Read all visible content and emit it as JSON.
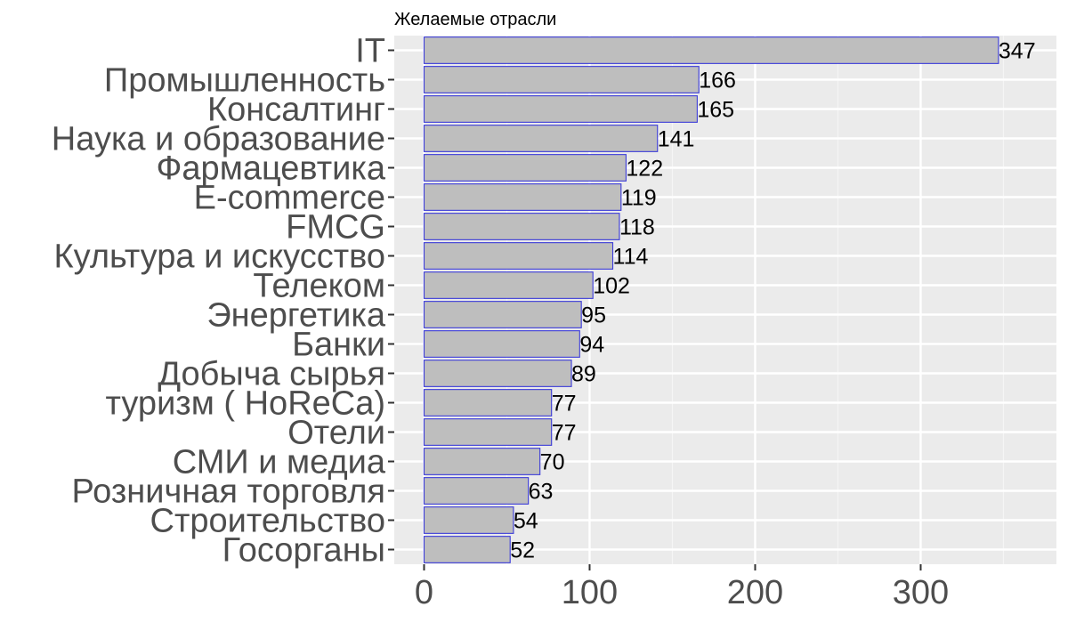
{
  "chart_data": {
    "type": "bar",
    "orientation": "horizontal",
    "title": "Желаемые отрасли",
    "xlabel": "",
    "ylabel": "",
    "categories": [
      "IT",
      "Промышленность",
      "Консалтинг",
      "Наука и образование",
      "Фармацевтика",
      "E-commerce",
      "FMCG",
      "Культура и искусство",
      "Телеком",
      "Энергетика",
      "Банки",
      "Добыча сырья",
      "туризм ( HoReCa)",
      "Отели",
      "СМИ и медиа",
      "Розничная торговля",
      "Строительство",
      "Госорганы"
    ],
    "values": [
      347,
      166,
      165,
      141,
      122,
      119,
      118,
      114,
      102,
      95,
      94,
      89,
      77,
      77,
      70,
      63,
      54,
      52
    ],
    "xlim": [
      -18,
      382
    ],
    "xticks": [
      0,
      100,
      200,
      300
    ],
    "xtick_labels": [
      "0",
      "100",
      "200",
      "300"
    ],
    "grid": true,
    "legend": "none",
    "colors": {
      "panel_background": "#ebebeb",
      "grid_major": "#ffffff",
      "grid_minor": "#f5f5f5",
      "bar_fill": "#bebebe",
      "bar_outline": "#3b3bd9",
      "axis_text": "#4d4d4d",
      "tick_mark": "#333333"
    }
  }
}
